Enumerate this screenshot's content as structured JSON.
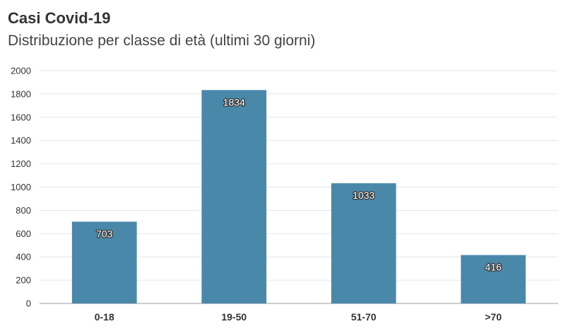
{
  "chart_data": {
    "type": "bar",
    "title": "Casi Covid-19",
    "subtitle": "Distribuzione per classe di età (ultimi 30 giorni)",
    "categories": [
      "0-18",
      "19-50",
      "51-70",
      ">70"
    ],
    "values": [
      703,
      1834,
      1033,
      416
    ],
    "data_labels": [
      "703",
      "1834",
      "1033",
      "416"
    ],
    "ylim": [
      0,
      2000
    ],
    "yticks": [
      0,
      200,
      400,
      600,
      800,
      1000,
      1200,
      1400,
      1600,
      1800,
      2000
    ],
    "grid": true,
    "bar_color": "#4a88aa",
    "legend": "none"
  }
}
